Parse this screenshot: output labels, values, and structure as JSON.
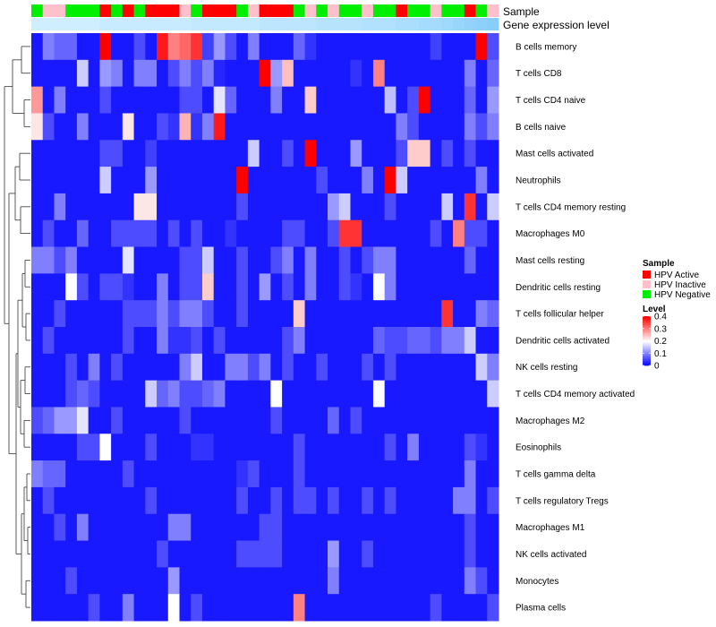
{
  "chart_data": {
    "type": "heatmap",
    "annotation_labels": [
      "Sample",
      "Gene expression level"
    ],
    "rows": [
      "B cells memory",
      "T cells CD8",
      "T cells CD4 naive",
      "B cells naive",
      "Mast cells activated",
      "Neutrophils",
      "T cells CD4 memory resting",
      "Macrophages M0",
      "Mast cells resting",
      "Dendritic cells resting",
      "T cells follicular helper",
      "Dendritic cells activated",
      "NK cells resting",
      "T cells CD4 memory activated",
      "Macrophages M2",
      "Eosinophils",
      "T cells gamma delta",
      "T cells regulatory  Tregs",
      "Macrophages M1",
      "NK cells activated",
      "Monocytes",
      "Plasma cells"
    ],
    "sample_groups": [
      "N",
      "I",
      "I",
      "N",
      "N",
      "N",
      "A",
      "N",
      "A",
      "N",
      "A",
      "A",
      "A",
      "I",
      "N",
      "A",
      "A",
      "A",
      "N",
      "I",
      "A",
      "A",
      "A",
      "N",
      "I",
      "N",
      "I",
      "N",
      "N",
      "I",
      "N",
      "N",
      "A",
      "N",
      "N",
      "I",
      "N",
      "N",
      "A",
      "N",
      "I"
    ],
    "gene_expression_level": [
      0.08,
      0.08,
      0.08,
      0.08,
      0.08,
      0.08,
      0.09,
      0.09,
      0.09,
      0.09,
      0.09,
      0.09,
      0.09,
      0.09,
      0.1,
      0.1,
      0.1,
      0.1,
      0.1,
      0.1,
      0.11,
      0.11,
      0.11,
      0.11,
      0.11,
      0.12,
      0.12,
      0.12,
      0.12,
      0.13,
      0.13,
      0.13,
      0.14,
      0.14,
      0.15,
      0.15,
      0.16,
      0.17,
      0.18,
      0.19,
      0.2
    ],
    "values": [
      [
        0.02,
        0.1,
        0.08,
        0.08,
        0.02,
        0.02,
        0.4,
        0.02,
        0.02,
        0.06,
        0.02,
        0.38,
        0.3,
        0.32,
        0.36,
        0.05,
        0.12,
        0.06,
        0.02,
        0.1,
        0.02,
        0.02,
        0.02,
        0.08,
        0.04,
        0.02,
        0.02,
        0.02,
        0.02,
        0.02,
        0.02,
        0.02,
        0.02,
        0.02,
        0.02,
        0.05,
        0.02,
        0.02,
        0.02,
        0.4,
        0.06
      ],
      [
        0.02,
        0.02,
        0.02,
        0.02,
        0.16,
        0.02,
        0.12,
        0.1,
        0.02,
        0.1,
        0.1,
        0.02,
        0.06,
        0.1,
        0.06,
        0.1,
        0.03,
        0.02,
        0.02,
        0.02,
        0.4,
        0.12,
        0.25,
        0.02,
        0.02,
        0.02,
        0.02,
        0.02,
        0.04,
        0.02,
        0.3,
        0.02,
        0.02,
        0.02,
        0.02,
        0.02,
        0.02,
        0.02,
        0.1,
        0.02,
        0.08
      ],
      [
        0.28,
        0.02,
        0.1,
        0.02,
        0.02,
        0.02,
        0.06,
        0.02,
        0.02,
        0.02,
        0.02,
        0.02,
        0.02,
        0.06,
        0.06,
        0.02,
        0.18,
        0.08,
        0.02,
        0.02,
        0.02,
        0.1,
        0.02,
        0.02,
        0.24,
        0.02,
        0.02,
        0.02,
        0.02,
        0.02,
        0.02,
        0.15,
        0.02,
        0.06,
        0.4,
        0.02,
        0.02,
        0.02,
        0.08,
        0.02,
        0.12
      ],
      [
        0.22,
        0.06,
        0.02,
        0.02,
        0.1,
        0.02,
        0.02,
        0.02,
        0.22,
        0.02,
        0.02,
        0.06,
        0.04,
        0.26,
        0.04,
        0.1,
        0.38,
        0.02,
        0.02,
        0.02,
        0.02,
        0.02,
        0.02,
        0.02,
        0.02,
        0.02,
        0.02,
        0.02,
        0.02,
        0.02,
        0.02,
        0.02,
        0.1,
        0.06,
        0.02,
        0.02,
        0.02,
        0.02,
        0.1,
        0.06,
        0.1
      ],
      [
        0.02,
        0.02,
        0.02,
        0.02,
        0.02,
        0.02,
        0.06,
        0.06,
        0.02,
        0.02,
        0.05,
        0.02,
        0.02,
        0.02,
        0.02,
        0.02,
        0.02,
        0.02,
        0.02,
        0.16,
        0.02,
        0.02,
        0.06,
        0.02,
        0.4,
        0.02,
        0.02,
        0.02,
        0.12,
        0.02,
        0.02,
        0.02,
        0.06,
        0.24,
        0.24,
        0.02,
        0.06,
        0.02,
        0.06,
        0.02,
        0.02
      ],
      [
        0.02,
        0.02,
        0.02,
        0.02,
        0.02,
        0.02,
        0.16,
        0.02,
        0.02,
        0.02,
        0.12,
        0.02,
        0.02,
        0.02,
        0.02,
        0.02,
        0.02,
        0.02,
        0.4,
        0.02,
        0.02,
        0.02,
        0.02,
        0.02,
        0.02,
        0.06,
        0.02,
        0.02,
        0.02,
        0.1,
        0.02,
        0.4,
        0.16,
        0.02,
        0.02,
        0.02,
        0.02,
        0.02,
        0.02,
        0.1,
        0.02
      ],
      [
        0.02,
        0.02,
        0.1,
        0.02,
        0.02,
        0.02,
        0.02,
        0.02,
        0.02,
        0.22,
        0.22,
        0.02,
        0.02,
        0.02,
        0.02,
        0.02,
        0.02,
        0.02,
        0.06,
        0.02,
        0.02,
        0.02,
        0.02,
        0.02,
        0.02,
        0.02,
        0.12,
        0.16,
        0.02,
        0.02,
        0.02,
        0.06,
        0.02,
        0.02,
        0.02,
        0.02,
        0.16,
        0.02,
        0.36,
        0.02,
        0.16
      ],
      [
        0.02,
        0.06,
        0.02,
        0.02,
        0.08,
        0.02,
        0.02,
        0.06,
        0.06,
        0.06,
        0.06,
        0.02,
        0.06,
        0.02,
        0.06,
        0.02,
        0.02,
        0.04,
        0.02,
        0.02,
        0.02,
        0.02,
        0.06,
        0.06,
        0.02,
        0.02,
        0.06,
        0.36,
        0.36,
        0.02,
        0.02,
        0.02,
        0.02,
        0.02,
        0.02,
        0.06,
        0.02,
        0.3,
        0.06,
        0.06,
        0.02
      ],
      [
        0.1,
        0.1,
        0.06,
        0.1,
        0.02,
        0.02,
        0.02,
        0.02,
        0.18,
        0.02,
        0.02,
        0.02,
        0.02,
        0.06,
        0.06,
        0.16,
        0.02,
        0.02,
        0.06,
        0.02,
        0.02,
        0.06,
        0.1,
        0.02,
        0.1,
        0.02,
        0.02,
        0.06,
        0.02,
        0.06,
        0.1,
        0.1,
        0.02,
        0.02,
        0.02,
        0.02,
        0.02,
        0.02,
        0.08,
        0.02,
        0.02
      ],
      [
        0.02,
        0.02,
        0.02,
        0.2,
        0.06,
        0.02,
        0.06,
        0.06,
        0.04,
        0.02,
        0.02,
        0.1,
        0.02,
        0.06,
        0.06,
        0.24,
        0.02,
        0.02,
        0.06,
        0.02,
        0.12,
        0.02,
        0.06,
        0.02,
        0.1,
        0.02,
        0.02,
        0.06,
        0.04,
        0.02,
        0.2,
        0.1,
        0.02,
        0.02,
        0.02,
        0.02,
        0.02,
        0.02,
        0.02,
        0.02,
        0.02
      ],
      [
        0.02,
        0.02,
        0.06,
        0.02,
        0.02,
        0.02,
        0.02,
        0.02,
        0.06,
        0.06,
        0.06,
        0.1,
        0.06,
        0.1,
        0.1,
        0.06,
        0.02,
        0.02,
        0.06,
        0.02,
        0.02,
        0.02,
        0.02,
        0.24,
        0.02,
        0.02,
        0.02,
        0.02,
        0.02,
        0.02,
        0.02,
        0.02,
        0.02,
        0.02,
        0.02,
        0.02,
        0.36,
        0.02,
        0.02,
        0.1,
        0.08
      ],
      [
        0.02,
        0.06,
        0.02,
        0.02,
        0.02,
        0.02,
        0.02,
        0.02,
        0.06,
        0.02,
        0.02,
        0.1,
        0.04,
        0.04,
        0.06,
        0.02,
        0.06,
        0.02,
        0.02,
        0.02,
        0.02,
        0.02,
        0.06,
        0.1,
        0.02,
        0.02,
        0.02,
        0.02,
        0.02,
        0.02,
        0.08,
        0.06,
        0.06,
        0.08,
        0.08,
        0.06,
        0.1,
        0.1,
        0.16,
        0.02,
        0.02
      ],
      [
        0.02,
        0.02,
        0.02,
        0.06,
        0.02,
        0.1,
        0.02,
        0.06,
        0.02,
        0.02,
        0.02,
        0.02,
        0.02,
        0.1,
        0.16,
        0.02,
        0.02,
        0.1,
        0.1,
        0.06,
        0.1,
        0.02,
        0.06,
        0.02,
        0.02,
        0.06,
        0.02,
        0.02,
        0.02,
        0.06,
        0.02,
        0.06,
        0.02,
        0.02,
        0.02,
        0.02,
        0.02,
        0.02,
        0.02,
        0.16,
        0.1
      ],
      [
        0.02,
        0.02,
        0.02,
        0.06,
        0.08,
        0.06,
        0.02,
        0.02,
        0.02,
        0.02,
        0.16,
        0.08,
        0.1,
        0.06,
        0.06,
        0.08,
        0.1,
        0.02,
        0.02,
        0.02,
        0.02,
        0.2,
        0.02,
        0.02,
        0.02,
        0.02,
        0.02,
        0.02,
        0.02,
        0.02,
        0.2,
        0.02,
        0.02,
        0.02,
        0.02,
        0.02,
        0.02,
        0.02,
        0.02,
        0.02,
        0.16
      ],
      [
        0.06,
        0.08,
        0.12,
        0.12,
        0.18,
        0.02,
        0.02,
        0.06,
        0.02,
        0.02,
        0.02,
        0.02,
        0.02,
        0.06,
        0.02,
        0.02,
        0.02,
        0.02,
        0.02,
        0.02,
        0.02,
        0.06,
        0.02,
        0.02,
        0.02,
        0.02,
        0.08,
        0.02,
        0.06,
        0.02,
        0.02,
        0.02,
        0.02,
        0.02,
        0.02,
        0.02,
        0.02,
        0.02,
        0.02,
        0.02,
        0.02
      ],
      [
        0.02,
        0.02,
        0.02,
        0.02,
        0.06,
        0.06,
        0.2,
        0.02,
        0.02,
        0.02,
        0.06,
        0.02,
        0.02,
        0.02,
        0.04,
        0.04,
        0.02,
        0.02,
        0.02,
        0.02,
        0.02,
        0.02,
        0.02,
        0.06,
        0.02,
        0.02,
        0.02,
        0.02,
        0.02,
        0.02,
        0.02,
        0.06,
        0.02,
        0.1,
        0.02,
        0.02,
        0.02,
        0.02,
        0.06,
        0.04,
        0.02
      ],
      [
        0.1,
        0.08,
        0.08,
        0.02,
        0.02,
        0.02,
        0.02,
        0.02,
        0.06,
        0.02,
        0.02,
        0.02,
        0.02,
        0.02,
        0.02,
        0.02,
        0.02,
        0.02,
        0.04,
        0.06,
        0.02,
        0.02,
        0.02,
        0.06,
        0.02,
        0.02,
        0.02,
        0.02,
        0.02,
        0.02,
        0.02,
        0.02,
        0.02,
        0.02,
        0.02,
        0.02,
        0.02,
        0.02,
        0.1,
        0.02,
        0.02
      ],
      [
        0.02,
        0.06,
        0.02,
        0.02,
        0.02,
        0.02,
        0.02,
        0.02,
        0.02,
        0.02,
        0.06,
        0.02,
        0.02,
        0.02,
        0.02,
        0.02,
        0.02,
        0.02,
        0.06,
        0.02,
        0.02,
        0.06,
        0.02,
        0.06,
        0.06,
        0.02,
        0.06,
        0.02,
        0.02,
        0.06,
        0.02,
        0.06,
        0.02,
        0.02,
        0.02,
        0.02,
        0.02,
        0.1,
        0.1,
        0.02,
        0.06
      ],
      [
        0.02,
        0.02,
        0.06,
        0.02,
        0.1,
        0.02,
        0.02,
        0.02,
        0.02,
        0.02,
        0.02,
        0.02,
        0.1,
        0.1,
        0.02,
        0.02,
        0.02,
        0.02,
        0.02,
        0.02,
        0.06,
        0.06,
        0.02,
        0.02,
        0.02,
        0.02,
        0.02,
        0.02,
        0.02,
        0.02,
        0.02,
        0.02,
        0.02,
        0.02,
        0.02,
        0.02,
        0.02,
        0.02,
        0.06,
        0.02,
        0.02
      ],
      [
        0.02,
        0.02,
        0.02,
        0.02,
        0.02,
        0.02,
        0.02,
        0.02,
        0.02,
        0.02,
        0.02,
        0.06,
        0.02,
        0.02,
        0.02,
        0.02,
        0.02,
        0.02,
        0.06,
        0.06,
        0.06,
        0.06,
        0.02,
        0.02,
        0.02,
        0.02,
        0.12,
        0.02,
        0.02,
        0.06,
        0.02,
        0.02,
        0.02,
        0.02,
        0.02,
        0.02,
        0.02,
        0.02,
        0.06,
        0.02,
        0.02
      ],
      [
        0.02,
        0.02,
        0.02,
        0.06,
        0.02,
        0.02,
        0.02,
        0.02,
        0.02,
        0.02,
        0.02,
        0.02,
        0.12,
        0.02,
        0.02,
        0.02,
        0.02,
        0.02,
        0.02,
        0.02,
        0.02,
        0.02,
        0.02,
        0.02,
        0.02,
        0.02,
        0.1,
        0.02,
        0.02,
        0.02,
        0.02,
        0.02,
        0.02,
        0.02,
        0.02,
        0.02,
        0.02,
        0.02,
        0.1,
        0.06,
        0.02
      ],
      [
        0.02,
        0.02,
        0.02,
        0.02,
        0.02,
        0.06,
        0.02,
        0.02,
        0.1,
        0.02,
        0.02,
        0.02,
        0.2,
        0.02,
        0.06,
        0.02,
        0.02,
        0.02,
        0.02,
        0.02,
        0.02,
        0.02,
        0.02,
        0.3,
        0.02,
        0.02,
        0.02,
        0.02,
        0.02,
        0.02,
        0.02,
        0.02,
        0.02,
        0.02,
        0.02,
        0.06,
        0.02,
        0.02,
        0.02,
        0.02,
        0.06
      ]
    ],
    "legend": {
      "sample_title": "Sample",
      "sample_items": [
        {
          "key": "A",
          "label": "HPV Active",
          "color": "#ff0000"
        },
        {
          "key": "I",
          "label": "HPV Inactive",
          "color": "#ffc0cb"
        },
        {
          "key": "N",
          "label": "HPV Negative",
          "color": "#00ee00"
        }
      ],
      "level_title": "Level",
      "level_ticks": [
        "0.4",
        "0.3",
        "0.2",
        "0.1",
        "0"
      ],
      "level_range": [
        0,
        0.4
      ]
    },
    "colors": {
      "low": "#0000ff",
      "mid": "#ffffff",
      "high": "#ff0000",
      "gene_low": "#cfeeff",
      "gene_high": "#87cefa"
    }
  }
}
